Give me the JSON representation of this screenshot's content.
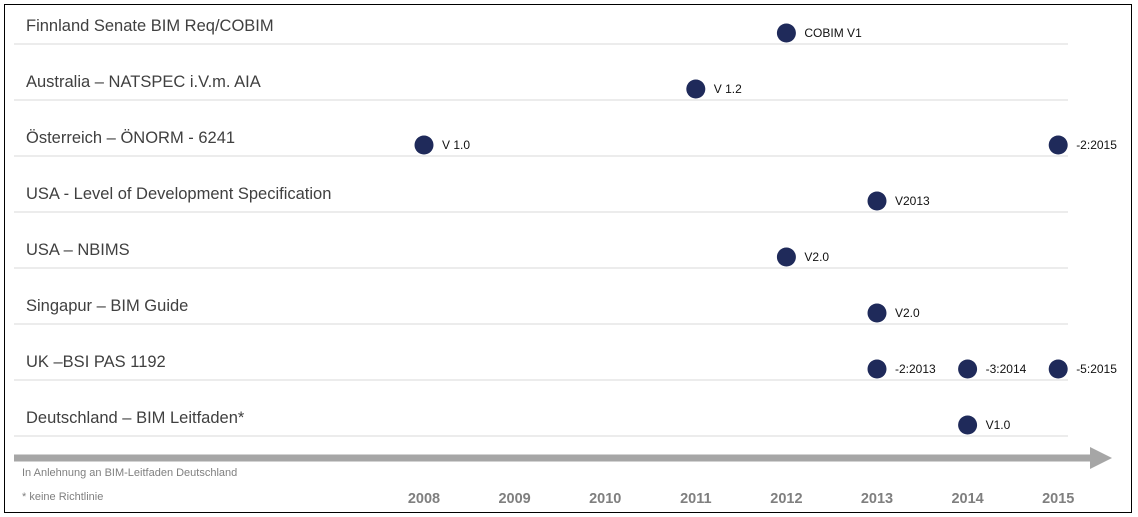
{
  "chart_data": {
    "type": "scatter",
    "x_ticks": [
      "2008",
      "2009",
      "2010",
      "2011",
      "2012",
      "2013",
      "2014",
      "2015"
    ],
    "xlim": [
      2008,
      2015
    ],
    "grid": true,
    "marker_color": "#1f2a5a",
    "rows": [
      {
        "label": "Finnland Senate BIM Req/COBIM",
        "points": [
          {
            "x": 2012,
            "text": "COBIM V1"
          }
        ]
      },
      {
        "label": "Australia – NATSPEC i.V.m. AIA",
        "points": [
          {
            "x": 2011,
            "text": "V 1.2"
          }
        ]
      },
      {
        "label": "Österreich – ÖNORM - 6241",
        "points": [
          {
            "x": 2008,
            "text": "V 1.0"
          },
          {
            "x": 2015,
            "text": "-2:2015"
          }
        ]
      },
      {
        "label": "USA - Level of Development Specification",
        "points": [
          {
            "x": 2013,
            "text": "V2013"
          }
        ]
      },
      {
        "label": "USA – NBIMS",
        "points": [
          {
            "x": 2012,
            "text": "V2.0"
          }
        ]
      },
      {
        "label": "Singapur – BIM Guide",
        "points": [
          {
            "x": 2013,
            "text": "V2.0"
          }
        ]
      },
      {
        "label": "UK –BSI PAS 1192",
        "points": [
          {
            "x": 2013,
            "text": "-2:2013"
          },
          {
            "x": 2014,
            "text": "-3:2014"
          },
          {
            "x": 2015,
            "text": "-5:2015"
          }
        ]
      },
      {
        "label": "Deutschland – BIM Leitfaden*",
        "points": [
          {
            "x": 2014,
            "text": "V1.0"
          }
        ]
      }
    ],
    "notes": [
      "In Anlehnung an BIM-Leitfaden Deutschland",
      "* keine Richtlinie"
    ]
  }
}
